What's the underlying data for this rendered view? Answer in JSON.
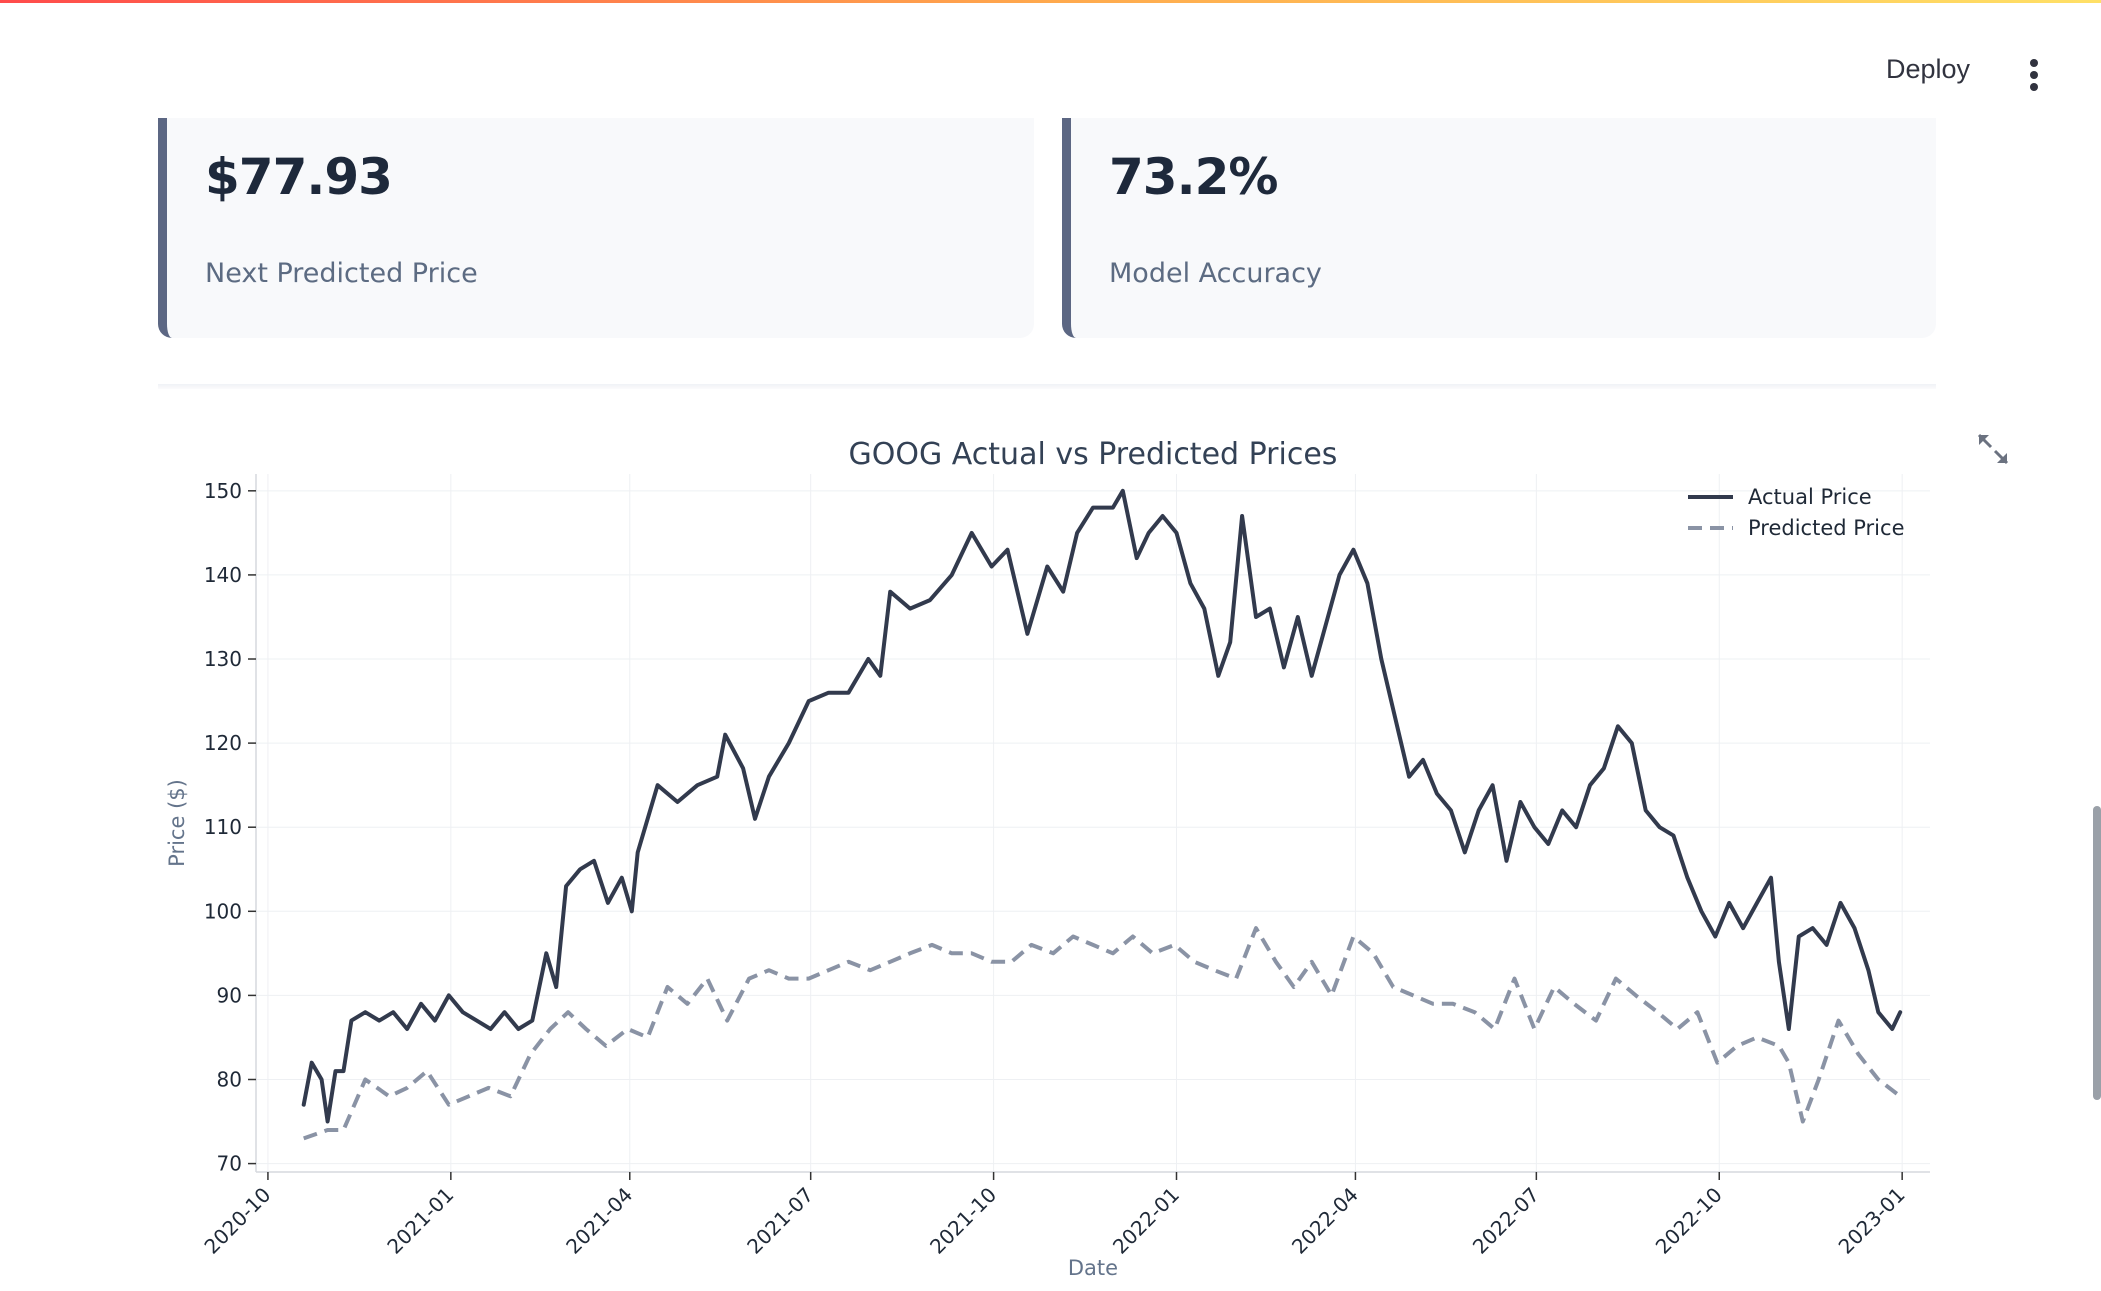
{
  "header": {
    "deploy_label": "Deploy",
    "menu_icon": "vertical-dots-icon"
  },
  "metrics": [
    {
      "value": "$77.93",
      "label": "Next Predicted Price"
    },
    {
      "value": "73.2%",
      "label": "Model Accuracy"
    }
  ],
  "toolbar": {
    "expand_icon": "fullscreen-expand-icon"
  },
  "colors": {
    "actual": "#323a4d",
    "predicted": "#8a93a5",
    "accent": "#5c6783"
  },
  "chart_data": {
    "type": "line",
    "title": "GOOG Actual vs Predicted Prices",
    "xlabel": "Date",
    "ylabel": "Price ($)",
    "ylim": [
      69,
      152
    ],
    "xlim": [
      "2020-09-25",
      "2023-01-15"
    ],
    "xticks": [
      "2020-10",
      "2021-01",
      "2021-04",
      "2021-07",
      "2021-10",
      "2022-01",
      "2022-04",
      "2022-07",
      "2022-10",
      "2023-01"
    ],
    "yticks": [
      70,
      80,
      90,
      100,
      110,
      120,
      130,
      140,
      150
    ],
    "legend": "top-right",
    "grid": true,
    "series": [
      {
        "name": "Actual Price",
        "style": "solid",
        "points": [
          [
            "2020-10-19",
            77
          ],
          [
            "2020-10-23",
            82
          ],
          [
            "2020-10-28",
            80
          ],
          [
            "2020-10-31",
            75
          ],
          [
            "2020-11-04",
            81
          ],
          [
            "2020-11-08",
            81
          ],
          [
            "2020-11-12",
            87
          ],
          [
            "2020-11-19",
            88
          ],
          [
            "2020-11-26",
            87
          ],
          [
            "2020-12-03",
            88
          ],
          [
            "2020-12-10",
            86
          ],
          [
            "2020-12-17",
            89
          ],
          [
            "2020-12-24",
            87
          ],
          [
            "2020-12-31",
            90
          ],
          [
            "2021-01-07",
            88
          ],
          [
            "2021-01-14",
            87
          ],
          [
            "2021-01-21",
            86
          ],
          [
            "2021-01-28",
            88
          ],
          [
            "2021-02-04",
            86
          ],
          [
            "2021-02-11",
            87
          ],
          [
            "2021-02-18",
            95
          ],
          [
            "2021-02-23",
            91
          ],
          [
            "2021-02-28",
            103
          ],
          [
            "2021-03-07",
            105
          ],
          [
            "2021-03-14",
            106
          ],
          [
            "2021-03-21",
            101
          ],
          [
            "2021-03-28",
            104
          ],
          [
            "2021-04-02",
            100
          ],
          [
            "2021-04-05",
            107
          ],
          [
            "2021-04-15",
            115
          ],
          [
            "2021-04-25",
            113
          ],
          [
            "2021-05-05",
            115
          ],
          [
            "2021-05-15",
            116
          ],
          [
            "2021-05-19",
            121
          ],
          [
            "2021-05-28",
            117
          ],
          [
            "2021-06-03",
            111
          ],
          [
            "2021-06-10",
            116
          ],
          [
            "2021-06-20",
            120
          ],
          [
            "2021-06-30",
            125
          ],
          [
            "2021-07-10",
            126
          ],
          [
            "2021-07-20",
            126
          ],
          [
            "2021-07-30",
            130
          ],
          [
            "2021-08-05",
            128
          ],
          [
            "2021-08-10",
            138
          ],
          [
            "2021-08-20",
            136
          ],
          [
            "2021-08-30",
            137
          ],
          [
            "2021-09-10",
            140
          ],
          [
            "2021-09-20",
            145
          ],
          [
            "2021-09-30",
            141
          ],
          [
            "2021-10-08",
            143
          ],
          [
            "2021-10-18",
            133
          ],
          [
            "2021-10-28",
            141
          ],
          [
            "2021-11-05",
            138
          ],
          [
            "2021-11-12",
            145
          ],
          [
            "2021-11-20",
            148
          ],
          [
            "2021-11-30",
            148
          ],
          [
            "2021-12-05",
            150
          ],
          [
            "2021-12-12",
            142
          ],
          [
            "2021-12-18",
            145
          ],
          [
            "2021-12-25",
            147
          ],
          [
            "2022-01-01",
            145
          ],
          [
            "2022-01-08",
            139
          ],
          [
            "2022-01-15",
            136
          ],
          [
            "2022-01-22",
            128
          ],
          [
            "2022-01-28",
            132
          ],
          [
            "2022-02-03",
            147
          ],
          [
            "2022-02-10",
            135
          ],
          [
            "2022-02-17",
            136
          ],
          [
            "2022-02-24",
            129
          ],
          [
            "2022-03-03",
            135
          ],
          [
            "2022-03-10",
            128
          ],
          [
            "2022-03-17",
            134
          ],
          [
            "2022-03-24",
            140
          ],
          [
            "2022-03-31",
            143
          ],
          [
            "2022-04-07",
            139
          ],
          [
            "2022-04-14",
            130
          ],
          [
            "2022-04-21",
            123
          ],
          [
            "2022-04-28",
            116
          ],
          [
            "2022-05-05",
            118
          ],
          [
            "2022-05-12",
            114
          ],
          [
            "2022-05-19",
            112
          ],
          [
            "2022-05-26",
            107
          ],
          [
            "2022-06-02",
            112
          ],
          [
            "2022-06-09",
            115
          ],
          [
            "2022-06-16",
            106
          ],
          [
            "2022-06-23",
            113
          ],
          [
            "2022-06-30",
            110
          ],
          [
            "2022-07-07",
            108
          ],
          [
            "2022-07-14",
            112
          ],
          [
            "2022-07-21",
            110
          ],
          [
            "2022-07-28",
            115
          ],
          [
            "2022-08-04",
            117
          ],
          [
            "2022-08-11",
            122
          ],
          [
            "2022-08-18",
            120
          ],
          [
            "2022-08-25",
            112
          ],
          [
            "2022-09-01",
            110
          ],
          [
            "2022-09-08",
            109
          ],
          [
            "2022-09-15",
            104
          ],
          [
            "2022-09-22",
            100
          ],
          [
            "2022-09-29",
            97
          ],
          [
            "2022-10-06",
            101
          ],
          [
            "2022-10-13",
            98
          ],
          [
            "2022-10-20",
            101
          ],
          [
            "2022-10-27",
            104
          ],
          [
            "2022-10-31",
            94
          ],
          [
            "2022-11-05",
            86
          ],
          [
            "2022-11-10",
            97
          ],
          [
            "2022-11-17",
            98
          ],
          [
            "2022-11-24",
            96
          ],
          [
            "2022-12-01",
            101
          ],
          [
            "2022-12-08",
            98
          ],
          [
            "2022-12-15",
            93
          ],
          [
            "2022-12-20",
            88
          ],
          [
            "2022-12-27",
            86
          ],
          [
            "2022-12-31",
            88
          ]
        ]
      },
      {
        "name": "Predicted Price",
        "style": "dashed",
        "points": [
          [
            "2020-10-19",
            73
          ],
          [
            "2020-10-31",
            74
          ],
          [
            "2020-11-08",
            74
          ],
          [
            "2020-11-19",
            80
          ],
          [
            "2020-12-01",
            78
          ],
          [
            "2020-12-10",
            79
          ],
          [
            "2020-12-20",
            81
          ],
          [
            "2020-12-31",
            77
          ],
          [
            "2021-01-10",
            78
          ],
          [
            "2021-01-20",
            79
          ],
          [
            "2021-01-31",
            78
          ],
          [
            "2021-02-10",
            83
          ],
          [
            "2021-02-20",
            86
          ],
          [
            "2021-03-01",
            88
          ],
          [
            "2021-03-10",
            86
          ],
          [
            "2021-03-20",
            84
          ],
          [
            "2021-03-31",
            86
          ],
          [
            "2021-04-10",
            85
          ],
          [
            "2021-04-20",
            91
          ],
          [
            "2021-04-30",
            89
          ],
          [
            "2021-05-10",
            92
          ],
          [
            "2021-05-20",
            87
          ],
          [
            "2021-05-31",
            92
          ],
          [
            "2021-06-10",
            93
          ],
          [
            "2021-06-20",
            92
          ],
          [
            "2021-06-30",
            92
          ],
          [
            "2021-07-10",
            93
          ],
          [
            "2021-07-20",
            94
          ],
          [
            "2021-07-31",
            93
          ],
          [
            "2021-08-10",
            94
          ],
          [
            "2021-08-20",
            95
          ],
          [
            "2021-08-31",
            96
          ],
          [
            "2021-09-10",
            95
          ],
          [
            "2021-09-20",
            95
          ],
          [
            "2021-09-30",
            94
          ],
          [
            "2021-10-10",
            94
          ],
          [
            "2021-10-20",
            96
          ],
          [
            "2021-10-31",
            95
          ],
          [
            "2021-11-10",
            97
          ],
          [
            "2021-11-20",
            96
          ],
          [
            "2021-11-30",
            95
          ],
          [
            "2021-12-10",
            97
          ],
          [
            "2021-12-20",
            95
          ],
          [
            "2021-12-31",
            96
          ],
          [
            "2022-01-10",
            94
          ],
          [
            "2022-01-20",
            93
          ],
          [
            "2022-01-31",
            92
          ],
          [
            "2022-02-10",
            98
          ],
          [
            "2022-02-20",
            94
          ],
          [
            "2022-03-01",
            91
          ],
          [
            "2022-03-10",
            94
          ],
          [
            "2022-03-20",
            90
          ],
          [
            "2022-03-31",
            97
          ],
          [
            "2022-04-10",
            95
          ],
          [
            "2022-04-20",
            91
          ],
          [
            "2022-04-30",
            90
          ],
          [
            "2022-05-10",
            89
          ],
          [
            "2022-05-20",
            89
          ],
          [
            "2022-05-31",
            88
          ],
          [
            "2022-06-10",
            86
          ],
          [
            "2022-06-20",
            92
          ],
          [
            "2022-06-30",
            86
          ],
          [
            "2022-07-10",
            91
          ],
          [
            "2022-07-20",
            89
          ],
          [
            "2022-07-31",
            87
          ],
          [
            "2022-08-10",
            92
          ],
          [
            "2022-08-20",
            90
          ],
          [
            "2022-08-31",
            88
          ],
          [
            "2022-09-10",
            86
          ],
          [
            "2022-09-20",
            88
          ],
          [
            "2022-09-30",
            82
          ],
          [
            "2022-10-10",
            84
          ],
          [
            "2022-10-20",
            85
          ],
          [
            "2022-10-31",
            84
          ],
          [
            "2022-11-05",
            82
          ],
          [
            "2022-11-12",
            75
          ],
          [
            "2022-11-20",
            80
          ],
          [
            "2022-11-30",
            87
          ],
          [
            "2022-12-10",
            83
          ],
          [
            "2022-12-20",
            80
          ],
          [
            "2022-12-31",
            78
          ]
        ]
      }
    ]
  }
}
